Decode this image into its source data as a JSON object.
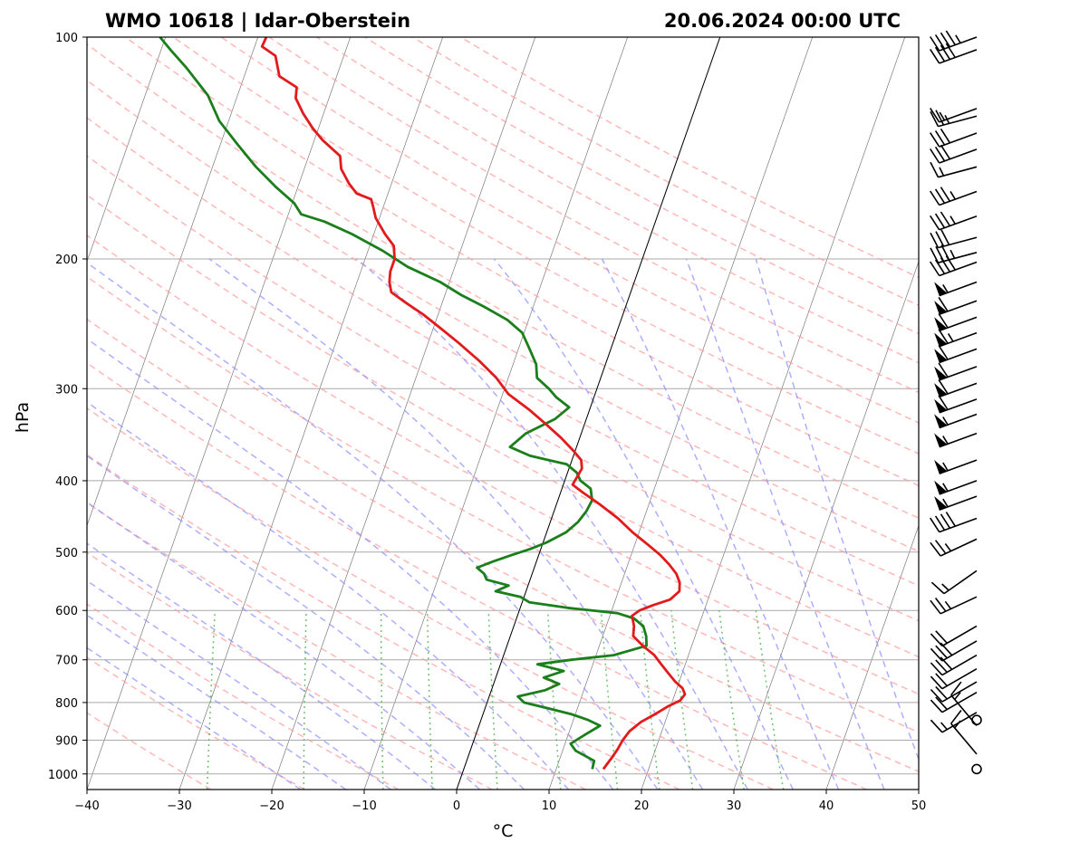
{
  "chart_data": {
    "type": "skew-t",
    "title_left": "WMO 10618 | Idar-Oberstein",
    "title_right": "20.06.2024 00:00 UTC",
    "xlabel": "°C",
    "ylabel": "hPa",
    "xlim": [
      -40,
      50
    ],
    "plim": [
      1050,
      100
    ],
    "x_ticks": [
      -40,
      -30,
      -20,
      -10,
      0,
      10,
      20,
      30,
      40,
      50
    ],
    "x_tick_labels": [
      "−40",
      "−30",
      "−20",
      "−10",
      "0",
      "10",
      "20",
      "30",
      "40",
      "50"
    ],
    "p_ticks": [
      100,
      200,
      300,
      400,
      500,
      600,
      700,
      800,
      900,
      1000
    ],
    "p_tick_labels": [
      "100",
      "200",
      "300",
      "400",
      "500",
      "600",
      "700",
      "800",
      "900",
      "1000"
    ],
    "colors": {
      "temperature": "#e31a1c",
      "dewpoint": "#1a7f1a",
      "dry_adiabat": "#ff9999",
      "moist_adiabat": "#8c8cff",
      "mixing_ratio": "#4db34d",
      "isotherm": "#7a7a7a",
      "isobar": "#a9a9a9",
      "zero_isotherm": "#000000",
      "wind_barb": "#000000"
    },
    "temperature": [
      {
        "p": 985,
        "t": 15.1
      },
      {
        "p": 970,
        "t": 15.3
      },
      {
        "p": 950,
        "t": 15.6
      },
      {
        "p": 925,
        "t": 15.9
      },
      {
        "p": 900,
        "t": 16.1
      },
      {
        "p": 875,
        "t": 16.5
      },
      {
        "p": 850,
        "t": 17.4
      },
      {
        "p": 830,
        "t": 18.6
      },
      {
        "p": 810,
        "t": 19.7
      },
      {
        "p": 795,
        "t": 20.8
      },
      {
        "p": 780,
        "t": 21.1
      },
      {
        "p": 765,
        "t": 20.6
      },
      {
        "p": 750,
        "t": 19.6
      },
      {
        "p": 730,
        "t": 18.5
      },
      {
        "p": 710,
        "t": 17.4
      },
      {
        "p": 690,
        "t": 16.3
      },
      {
        "p": 670,
        "t": 14.7
      },
      {
        "p": 650,
        "t": 13.3
      },
      {
        "p": 630,
        "t": 13.0
      },
      {
        "p": 610,
        "t": 12.4
      },
      {
        "p": 600,
        "t": 13.0
      },
      {
        "p": 590,
        "t": 14.3
      },
      {
        "p": 580,
        "t": 15.9
      },
      {
        "p": 565,
        "t": 16.6
      },
      {
        "p": 550,
        "t": 16.3
      },
      {
        "p": 535,
        "t": 15.6
      },
      {
        "p": 520,
        "t": 14.5
      },
      {
        "p": 505,
        "t": 13.2
      },
      {
        "p": 490,
        "t": 11.6
      },
      {
        "p": 470,
        "t": 9.3
      },
      {
        "p": 450,
        "t": 7.2
      },
      {
        "p": 430,
        "t": 4.6
      },
      {
        "p": 415,
        "t": 2.4
      },
      {
        "p": 405,
        "t": 1.0
      },
      {
        "p": 395,
        "t": 1.2
      },
      {
        "p": 385,
        "t": 1.4
      },
      {
        "p": 375,
        "t": 1.0
      },
      {
        "p": 365,
        "t": -0.1
      },
      {
        "p": 350,
        "t": -2.0
      },
      {
        "p": 335,
        "t": -4.2
      },
      {
        "p": 320,
        "t": -6.6
      },
      {
        "p": 305,
        "t": -9.4
      },
      {
        "p": 290,
        "t": -11.3
      },
      {
        "p": 275,
        "t": -13.8
      },
      {
        "p": 260,
        "t": -16.7
      },
      {
        "p": 248,
        "t": -19.3
      },
      {
        "p": 238,
        "t": -21.6
      },
      {
        "p": 228,
        "t": -24.3
      },
      {
        "p": 222,
        "t": -25.9
      },
      {
        "p": 215,
        "t": -26.5
      },
      {
        "p": 208,
        "t": -26.8
      },
      {
        "p": 200,
        "t": -26.8
      },
      {
        "p": 192,
        "t": -27.4
      },
      {
        "p": 185,
        "t": -28.8
      },
      {
        "p": 176,
        "t": -30.4
      },
      {
        "p": 170,
        "t": -31.1
      },
      {
        "p": 166,
        "t": -31.6
      },
      {
        "p": 163,
        "t": -33.4
      },
      {
        "p": 158,
        "t": -34.6
      },
      {
        "p": 151,
        "t": -36.0
      },
      {
        "p": 145,
        "t": -36.6
      },
      {
        "p": 138,
        "t": -39.1
      },
      {
        "p": 133,
        "t": -40.6
      },
      {
        "p": 127,
        "t": -42.2
      },
      {
        "p": 121,
        "t": -43.6
      },
      {
        "p": 117,
        "t": -43.9
      },
      {
        "p": 113,
        "t": -46.2
      },
      {
        "p": 106,
        "t": -47.4
      },
      {
        "p": 103,
        "t": -49.2
      },
      {
        "p": 100,
        "t": -49.1
      }
    ],
    "dewpoint": [
      {
        "p": 985,
        "t": 13.9
      },
      {
        "p": 960,
        "t": 13.8
      },
      {
        "p": 930,
        "t": 11.4
      },
      {
        "p": 910,
        "t": 10.6
      },
      {
        "p": 885,
        "t": 11.8
      },
      {
        "p": 860,
        "t": 13.1
      },
      {
        "p": 845,
        "t": 11.6
      },
      {
        "p": 830,
        "t": 9.6
      },
      {
        "p": 815,
        "t": 6.9
      },
      {
        "p": 800,
        "t": 4.0
      },
      {
        "p": 785,
        "t": 3.1
      },
      {
        "p": 770,
        "t": 5.8
      },
      {
        "p": 755,
        "t": 7.1
      },
      {
        "p": 740,
        "t": 5.2
      },
      {
        "p": 725,
        "t": 7.1
      },
      {
        "p": 710,
        "t": 4.0
      },
      {
        "p": 700,
        "t": 7.5
      },
      {
        "p": 690,
        "t": 11.9
      },
      {
        "p": 670,
        "t": 15.1
      },
      {
        "p": 650,
        "t": 14.7
      },
      {
        "p": 630,
        "t": 14.0
      },
      {
        "p": 615,
        "t": 12.7
      },
      {
        "p": 605,
        "t": 10.7
      },
      {
        "p": 595,
        "t": 5.1
      },
      {
        "p": 585,
        "t": 0.8
      },
      {
        "p": 575,
        "t": -0.4
      },
      {
        "p": 565,
        "t": -3.3
      },
      {
        "p": 555,
        "t": -2.1
      },
      {
        "p": 545,
        "t": -4.7
      },
      {
        "p": 535,
        "t": -5.2
      },
      {
        "p": 525,
        "t": -6.2
      },
      {
        "p": 515,
        "t": -4.7
      },
      {
        "p": 505,
        "t": -3.0
      },
      {
        "p": 495,
        "t": -1.1
      },
      {
        "p": 485,
        "t": 0.4
      },
      {
        "p": 470,
        "t": 2.1
      },
      {
        "p": 455,
        "t": 3.0
      },
      {
        "p": 440,
        "t": 3.5
      },
      {
        "p": 425,
        "t": 3.7
      },
      {
        "p": 410,
        "t": 3.1
      },
      {
        "p": 400,
        "t": 1.7
      },
      {
        "p": 390,
        "t": 1.0
      },
      {
        "p": 380,
        "t": -0.4
      },
      {
        "p": 370,
        "t": -4.7
      },
      {
        "p": 360,
        "t": -7.2
      },
      {
        "p": 345,
        "t": -6.0
      },
      {
        "p": 330,
        "t": -3.4
      },
      {
        "p": 318,
        "t": -2.3
      },
      {
        "p": 308,
        "t": -4.1
      },
      {
        "p": 300,
        "t": -5.2
      },
      {
        "p": 290,
        "t": -6.9
      },
      {
        "p": 278,
        "t": -7.5
      },
      {
        "p": 265,
        "t": -8.8
      },
      {
        "p": 252,
        "t": -10.2
      },
      {
        "p": 242,
        "t": -12.3
      },
      {
        "p": 232,
        "t": -15.4
      },
      {
        "p": 224,
        "t": -18.2
      },
      {
        "p": 215,
        "t": -21.0
      },
      {
        "p": 205,
        "t": -25.1
      },
      {
        "p": 195,
        "t": -28.4
      },
      {
        "p": 185,
        "t": -32.4
      },
      {
        "p": 178,
        "t": -35.8
      },
      {
        "p": 174,
        "t": -38.6
      },
      {
        "p": 168,
        "t": -39.8
      },
      {
        "p": 160,
        "t": -42.3
      },
      {
        "p": 150,
        "t": -45.3
      },
      {
        "p": 140,
        "t": -48.1
      },
      {
        "p": 130,
        "t": -51.0
      },
      {
        "p": 120,
        "t": -53.2
      },
      {
        "p": 110,
        "t": -56.6
      },
      {
        "p": 104,
        "t": -59.0
      },
      {
        "p": 100,
        "t": -60.6
      }
    ],
    "wind_barbs": [
      {
        "p": 100,
        "speed": 45,
        "dir": 250
      },
      {
        "p": 104,
        "speed": 40,
        "dir": 250
      },
      {
        "p": 125,
        "speed": 15,
        "dir": 250
      },
      {
        "p": 128,
        "speed": 25,
        "dir": 255
      },
      {
        "p": 135,
        "speed": 30,
        "dir": 250
      },
      {
        "p": 142,
        "speed": 30,
        "dir": 250
      },
      {
        "p": 150,
        "speed": 15,
        "dir": 255
      },
      {
        "p": 162,
        "speed": 35,
        "dir": 250
      },
      {
        "p": 175,
        "speed": 35,
        "dir": 250
      },
      {
        "p": 187,
        "speed": 30,
        "dir": 255
      },
      {
        "p": 196,
        "speed": 35,
        "dir": 255
      },
      {
        "p": 202,
        "speed": 40,
        "dir": 250
      },
      {
        "p": 215,
        "speed": 55,
        "dir": 250
      },
      {
        "p": 228,
        "speed": 60,
        "dir": 250
      },
      {
        "p": 240,
        "speed": 60,
        "dir": 250
      },
      {
        "p": 252,
        "speed": 65,
        "dir": 250
      },
      {
        "p": 265,
        "speed": 60,
        "dir": 250
      },
      {
        "p": 280,
        "speed": 60,
        "dir": 250
      },
      {
        "p": 295,
        "speed": 60,
        "dir": 250
      },
      {
        "p": 310,
        "speed": 60,
        "dir": 250
      },
      {
        "p": 325,
        "speed": 55,
        "dir": 250
      },
      {
        "p": 345,
        "speed": 55,
        "dir": 250
      },
      {
        "p": 375,
        "speed": 55,
        "dir": 250
      },
      {
        "p": 400,
        "speed": 55,
        "dir": 250
      },
      {
        "p": 420,
        "speed": 55,
        "dir": 250
      },
      {
        "p": 450,
        "speed": 40,
        "dir": 250
      },
      {
        "p": 480,
        "speed": 25,
        "dir": 245
      },
      {
        "p": 530,
        "speed": 15,
        "dir": 235
      },
      {
        "p": 575,
        "speed": 25,
        "dir": 245
      },
      {
        "p": 630,
        "speed": 20,
        "dir": 240
      },
      {
        "p": 660,
        "speed": 30,
        "dir": 240
      },
      {
        "p": 690,
        "speed": 30,
        "dir": 240
      },
      {
        "p": 720,
        "speed": 20,
        "dir": 240
      },
      {
        "p": 750,
        "speed": 20,
        "dir": 240
      },
      {
        "p": 775,
        "speed": 20,
        "dir": 240
      },
      {
        "p": 825,
        "speed": 15,
        "dir": 240
      },
      {
        "p": 845,
        "speed": 0,
        "dir": 0
      },
      {
        "p": 860,
        "speed": 15,
        "dir": 320
      },
      {
        "p": 940,
        "speed": 15,
        "dir": 320
      },
      {
        "p": 985,
        "speed": 0,
        "dir": 0
      }
    ]
  }
}
